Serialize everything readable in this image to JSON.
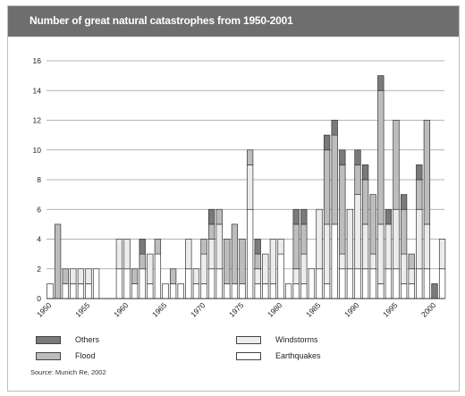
{
  "chart_data": {
    "type": "bar",
    "stacked": true,
    "title": "Number of great natural catastrophes from 1950-2001",
    "xlabel": "",
    "ylabel": "",
    "ylim": [
      0,
      16
    ],
    "yticks": [
      0,
      2,
      4,
      6,
      8,
      10,
      12,
      14,
      16
    ],
    "xtick_labels": [
      "1950",
      "1955",
      "1960",
      "1965",
      "1970",
      "1975",
      "1980",
      "1985",
      "1990",
      "1995",
      "2000"
    ],
    "grid": true,
    "legend_position": "bottom",
    "categories": [
      1950,
      1951,
      1952,
      1953,
      1954,
      1955,
      1956,
      1957,
      1958,
      1959,
      1960,
      1961,
      1962,
      1963,
      1964,
      1965,
      1966,
      1967,
      1968,
      1969,
      1970,
      1971,
      1972,
      1973,
      1974,
      1975,
      1976,
      1977,
      1978,
      1979,
      1980,
      1981,
      1982,
      1983,
      1984,
      1985,
      1986,
      1987,
      1988,
      1989,
      1990,
      1991,
      1992,
      1993,
      1994,
      1995,
      1996,
      1997,
      1998,
      1999,
      2000,
      2001
    ],
    "series": [
      {
        "name": "Earthquakes",
        "color": "#ffffff",
        "values": [
          1,
          0,
          1,
          1,
          1,
          1,
          2,
          0,
          0,
          2,
          2,
          1,
          2,
          1,
          3,
          1,
          1,
          1,
          2,
          1,
          1,
          2,
          2,
          1,
          1,
          1,
          6,
          1,
          1,
          1,
          3,
          1,
          1,
          1,
          2,
          2,
          1,
          5,
          2,
          2,
          2,
          2,
          2,
          1,
          2,
          2,
          1,
          1,
          2,
          2,
          0,
          2
        ]
      },
      {
        "name": "Windstorms",
        "color": "#ececec",
        "values": [
          0,
          0,
          0,
          1,
          1,
          1,
          0,
          0,
          0,
          2,
          2,
          0,
          0,
          2,
          0,
          0,
          0,
          0,
          2,
          1,
          2,
          2,
          3,
          0,
          0,
          0,
          3,
          1,
          2,
          3,
          1,
          0,
          1,
          2,
          0,
          4,
          4,
          0,
          1,
          4,
          5,
          3,
          1,
          4,
          3,
          4,
          2,
          1,
          4,
          3,
          0,
          2
        ]
      },
      {
        "name": "Flood",
        "color": "#bdbdbd",
        "values": [
          0,
          5,
          1,
          0,
          0,
          0,
          0,
          0,
          0,
          0,
          0,
          1,
          1,
          0,
          1,
          0,
          1,
          0,
          0,
          0,
          1,
          1,
          1,
          3,
          4,
          3,
          1,
          1,
          0,
          0,
          0,
          0,
          3,
          2,
          0,
          0,
          5,
          6,
          6,
          0,
          2,
          3,
          4,
          9,
          0,
          6,
          3,
          1,
          2,
          7,
          0,
          0
        ]
      },
      {
        "name": "Others",
        "color": "#7a7a7a",
        "values": [
          0,
          0,
          0,
          0,
          0,
          0,
          0,
          0,
          0,
          0,
          0,
          0,
          1,
          0,
          0,
          0,
          0,
          0,
          0,
          0,
          0,
          1,
          0,
          0,
          0,
          0,
          0,
          1,
          0,
          0,
          0,
          0,
          1,
          1,
          0,
          0,
          1,
          1,
          1,
          0,
          1,
          1,
          0,
          1,
          1,
          0,
          1,
          0,
          1,
          0,
          1,
          0
        ]
      }
    ]
  },
  "legend": {
    "others": "Others",
    "flood": "Flood",
    "windstorms": "Windstorms",
    "earthquakes": "Earthquakes"
  },
  "source": "Source: Munich Re, 2002"
}
